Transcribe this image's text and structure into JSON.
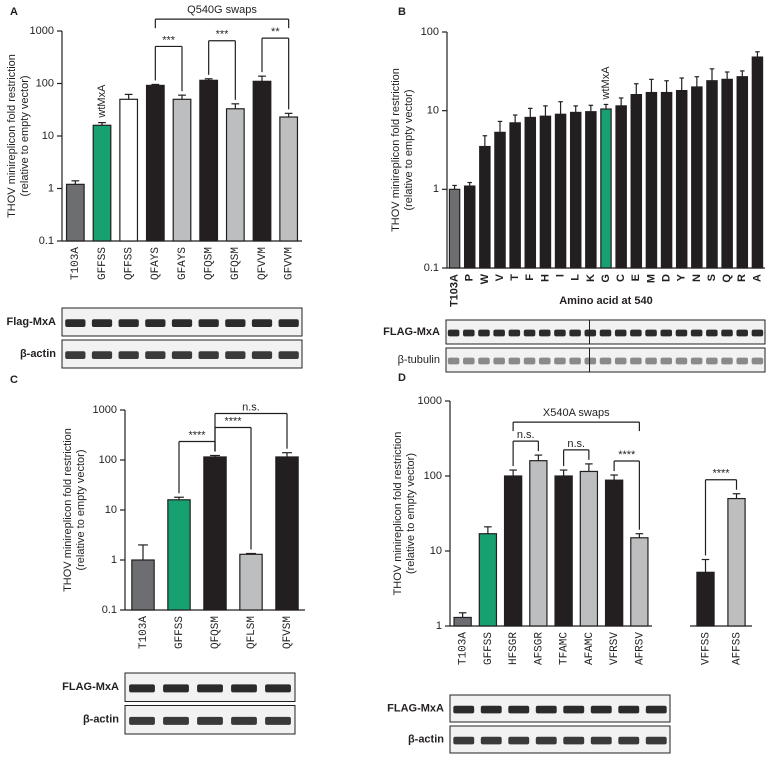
{
  "chart_data": [
    {
      "type": "bar",
      "letter": "A",
      "log_y": true,
      "ylabel": "THOV minireplicon fold restriction",
      "ysublabel": "(relative to empty vector)",
      "categories": [
        "T103A",
        "GFFSS",
        "QFFSS",
        "QFAYS",
        "GFAYS",
        "QFQSM",
        "GFQSM",
        "QFVVM",
        "GFVVM"
      ],
      "values": [
        1.2,
        16,
        50,
        92,
        50,
        115,
        33,
        110,
        23
      ],
      "errors": [
        0.2,
        2,
        12,
        4,
        10,
        8,
        8,
        28,
        4
      ],
      "colors": [
        "#6d6e71",
        "#17a070",
        "#ffffff",
        "#231f20",
        "#bcbec0",
        "#231f20",
        "#bcbec0",
        "#231f20",
        "#bcbec0"
      ],
      "ylim": [
        0.1,
        1000
      ],
      "yticks": [
        0.1,
        1,
        10,
        100,
        1000
      ],
      "annotations": [
        {
          "text": "wtMxA",
          "at": 1
        }
      ],
      "group_brackets": [
        {
          "label": "Q540G swaps",
          "between": [
            3,
            8
          ]
        }
      ],
      "comparisons": [
        {
          "label": "***",
          "between": [
            3,
            4
          ]
        },
        {
          "label": "***",
          "between": [
            5,
            6
          ]
        },
        {
          "label": "**",
          "between": [
            7,
            8
          ]
        }
      ],
      "blot_labels": [
        "Flag-MxA",
        "β-actin"
      ]
    },
    {
      "type": "bar",
      "letter": "B",
      "log_y": true,
      "ylabel": "THOV minireplicon fold restriction",
      "ysublabel": "(relative to empty vector)",
      "xlabel": "Amino acid at 540",
      "categories": [
        "T103A",
        "P",
        "W",
        "V",
        "T",
        "F",
        "H",
        "I",
        "L",
        "K",
        "G",
        "C",
        "E",
        "M",
        "D",
        "Y",
        "N",
        "S",
        "Q",
        "R",
        "A"
      ],
      "values": [
        1.0,
        1.1,
        3.5,
        5.3,
        7,
        8.2,
        8.5,
        9,
        9.5,
        9.7,
        10.5,
        11.5,
        16,
        17,
        17,
        18,
        20,
        24,
        25,
        27,
        48
      ],
      "errors": [
        0.12,
        0.12,
        1.3,
        2,
        1.8,
        2.5,
        3,
        4,
        2,
        2,
        1.5,
        3,
        6,
        8,
        7,
        8,
        7,
        10,
        6,
        5,
        8
      ],
      "colors": [
        "#6d6e71",
        "#231f20",
        "#231f20",
        "#231f20",
        "#231f20",
        "#231f20",
        "#231f20",
        "#231f20",
        "#231f20",
        "#231f20",
        "#17a070",
        "#231f20",
        "#231f20",
        "#231f20",
        "#231f20",
        "#231f20",
        "#231f20",
        "#231f20",
        "#231f20",
        "#231f20",
        "#231f20"
      ],
      "ylim": [
        0.1,
        100
      ],
      "yticks": [
        0.1,
        1,
        10,
        100
      ],
      "annotations": [
        {
          "text": "wtMxA",
          "at": 10
        }
      ],
      "blot_labels": [
        "FLAG-MxA",
        "β-tubulin"
      ]
    },
    {
      "type": "bar",
      "letter": "C",
      "log_y": true,
      "ylabel": "THOV minireplicon fold restriction",
      "ysublabel": "(relative to empty vector)",
      "categories": [
        "T103A",
        "GFFSS",
        "QFQSM",
        "QFLSM",
        "QFVSM"
      ],
      "values": [
        1,
        16,
        115,
        1.3,
        115
      ],
      "errors": [
        1,
        2,
        8,
        0.05,
        25
      ],
      "colors": [
        "#6d6e71",
        "#17a070",
        "#231f20",
        "#bcbec0",
        "#231f20"
      ],
      "ylim": [
        0.1,
        1000
      ],
      "yticks": [
        0.1,
        1,
        10,
        100,
        1000
      ],
      "comparisons": [
        {
          "label": "****",
          "between": [
            1,
            2
          ]
        },
        {
          "label": "****",
          "between": [
            2,
            3
          ]
        },
        {
          "label": "n.s.",
          "between": [
            2,
            4
          ]
        }
      ],
      "blot_labels": [
        "FLAG-MxA",
        "β-actin"
      ]
    },
    {
      "type": "bar",
      "letter": "D",
      "log_y": true,
      "ylabel": "THOV minireplicon fold restriction",
      "ysublabel": "(relative to empty vector)",
      "categories": [
        "T103A",
        "GFFSS",
        "HFSGR",
        "AFSGR",
        "TFAMC",
        "AFAMC",
        "VFRSV",
        "AFRSV",
        "VFFSS",
        "AFFSS"
      ],
      "values": [
        1.3,
        17,
        100,
        160,
        100,
        115,
        88,
        15,
        5.2,
        50
      ],
      "errors": [
        0.2,
        4,
        20,
        30,
        20,
        30,
        15,
        2,
        2.5,
        8
      ],
      "colors": [
        "#6d6e71",
        "#17a070",
        "#231f20",
        "#bcbec0",
        "#231f20",
        "#bcbec0",
        "#231f20",
        "#bcbec0",
        "#231f20",
        "#bcbec0"
      ],
      "ylim": [
        1,
        1000
      ],
      "yticks": [
        1,
        10,
        100,
        1000
      ],
      "group_brackets": [
        {
          "label": "X540A swaps",
          "between": [
            2,
            7
          ]
        }
      ],
      "comparisons": [
        {
          "label": "n.s.",
          "between": [
            2,
            3
          ]
        },
        {
          "label": "n.s.",
          "between": [
            4,
            5
          ]
        },
        {
          "label": "****",
          "between": [
            6,
            7
          ]
        },
        {
          "label": "****",
          "between": [
            8,
            9
          ]
        }
      ],
      "blot_labels": [
        "FLAG-MxA",
        "β-actin"
      ]
    }
  ]
}
